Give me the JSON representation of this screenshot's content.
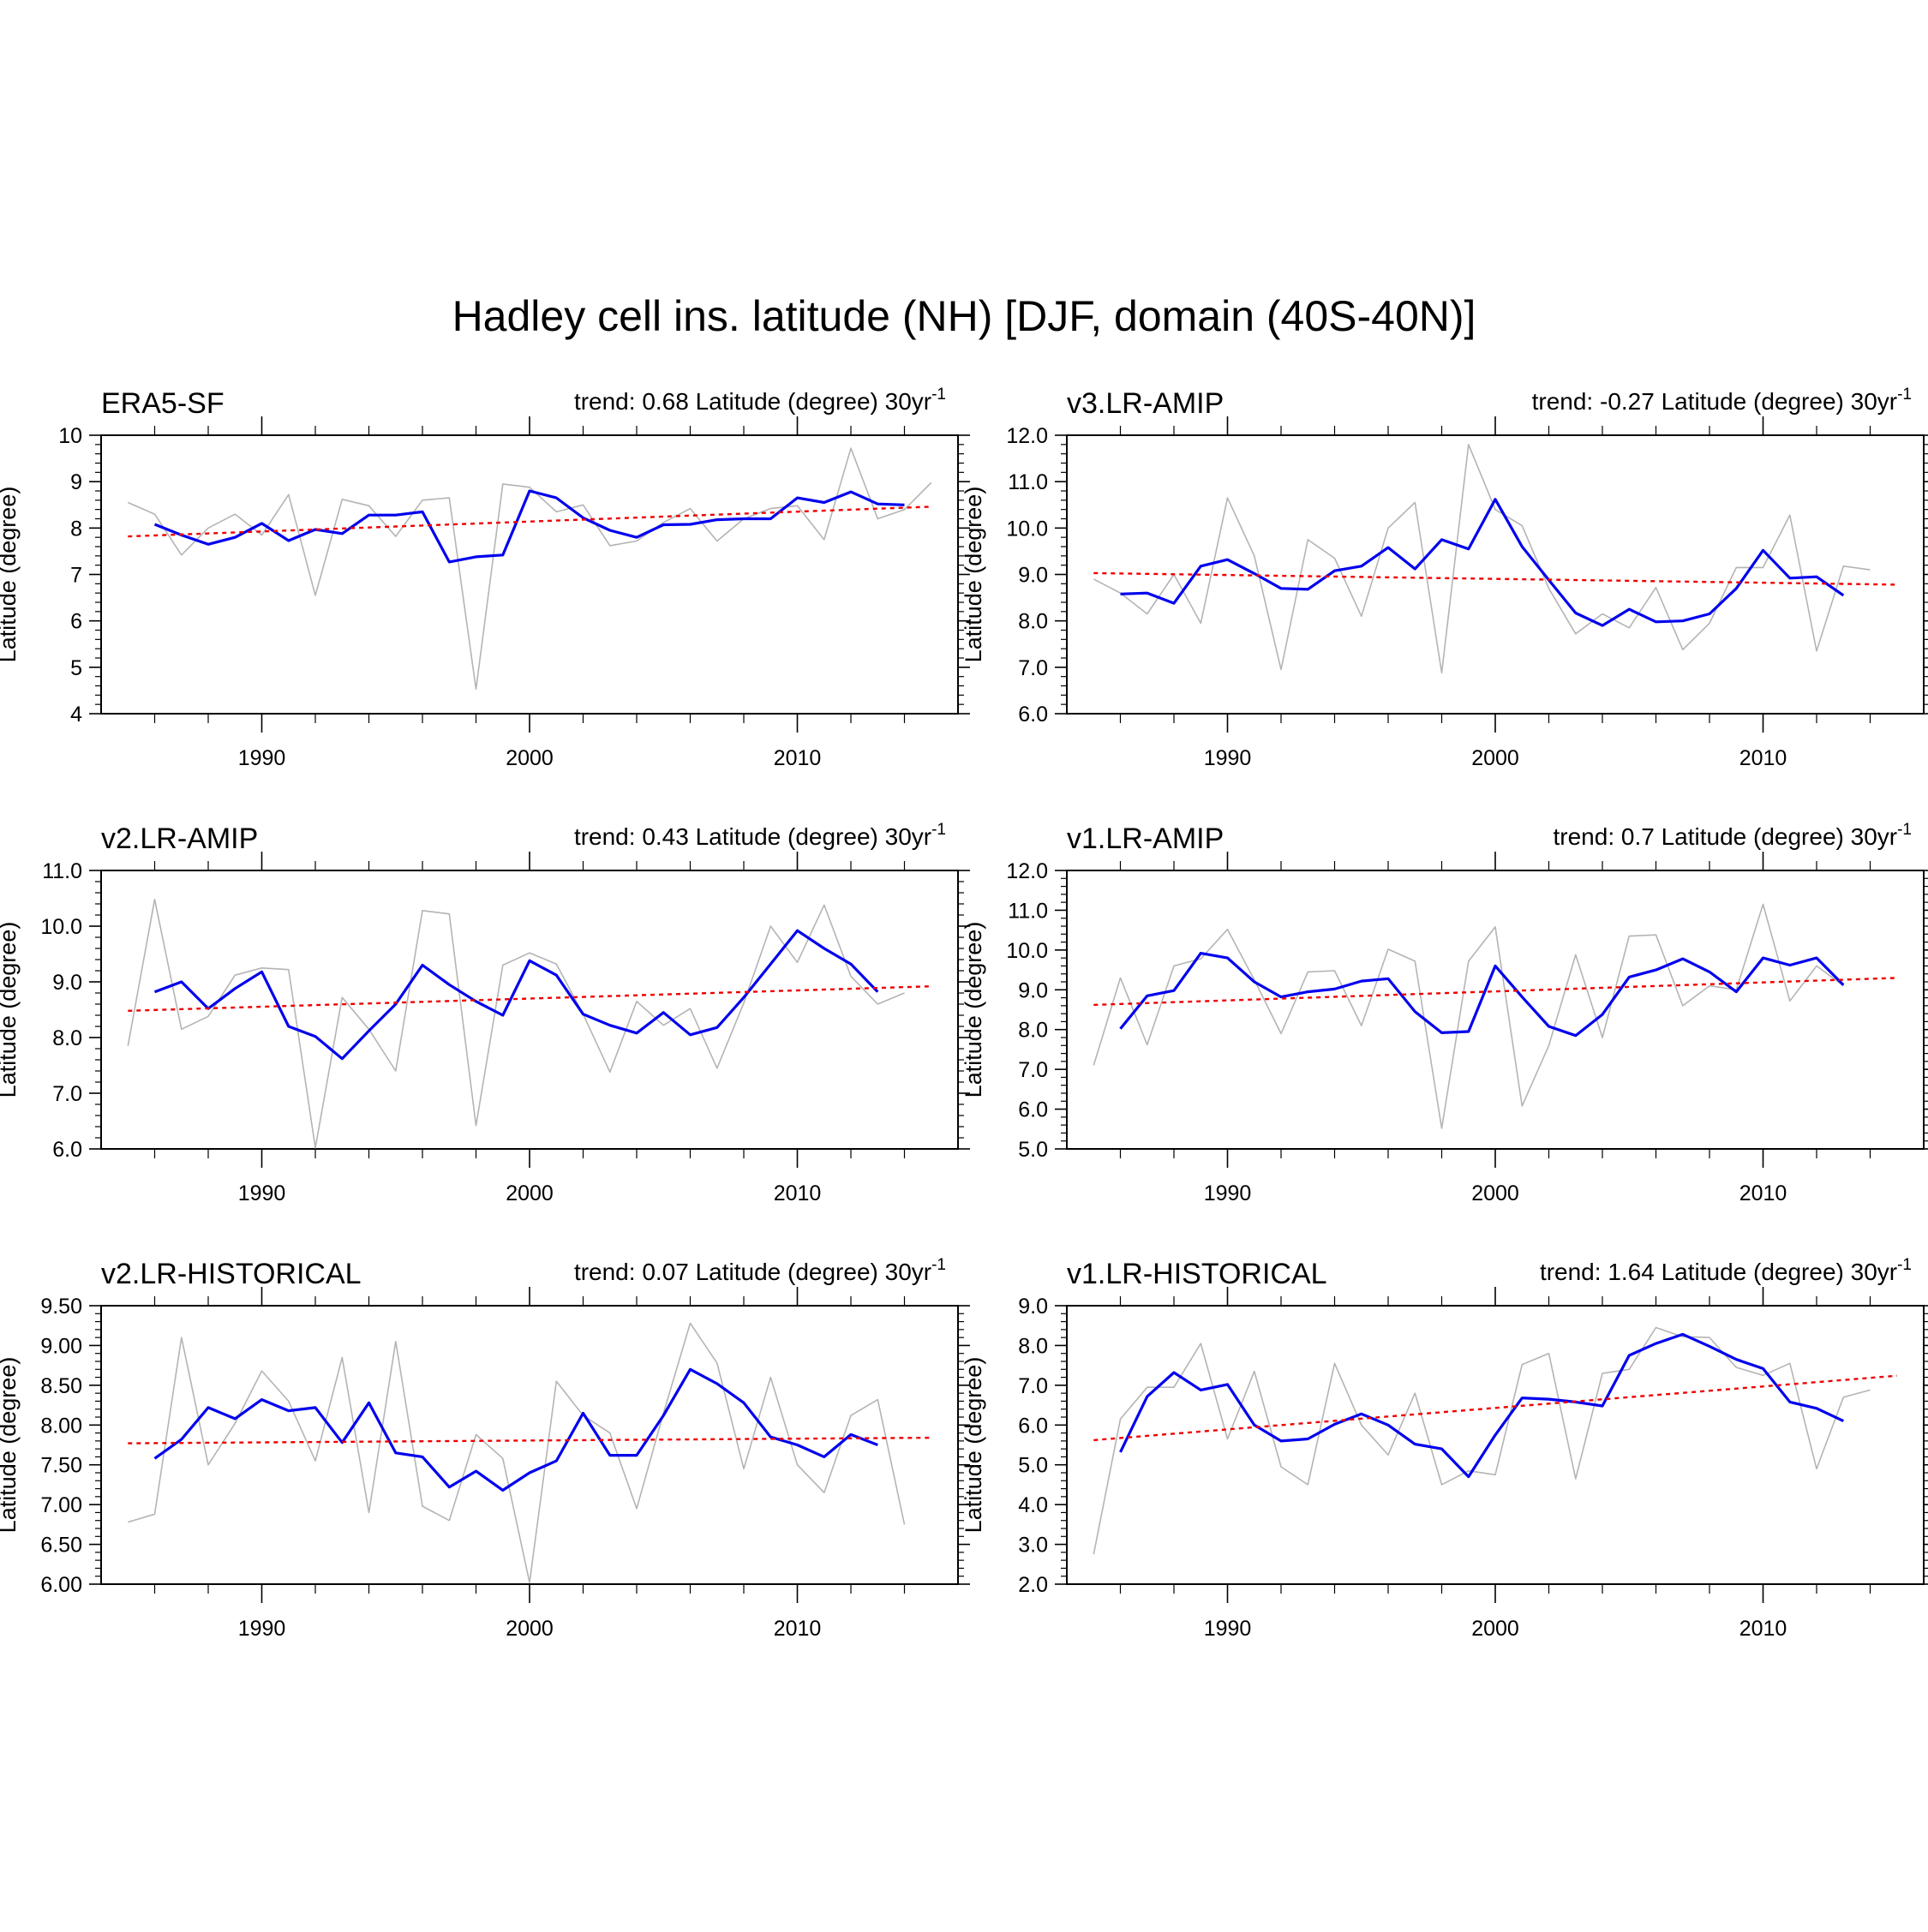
{
  "figure": {
    "title": "Hadley cell ins. latitude (NH) [DJF, domain (40S-40N)]",
    "colors": {
      "raw": "#b4b4b4",
      "smooth": "#0000ee",
      "trend": "#ee0000",
      "axis": "#000000"
    }
  },
  "chart_data": [
    {
      "type": "line",
      "title": "ERA5-SF",
      "trend_label": "trend: 0.68 Latitude (degree) 30yr",
      "trend_unit_exp": "-1",
      "xlabel": "",
      "ylabel": "Latitude (degree)",
      "xlim": [
        1984,
        2016
      ],
      "ylim": [
        4,
        10
      ],
      "xticks": [
        1990,
        2000,
        2010
      ],
      "xtick_labels": [
        "1990",
        "2000",
        "2010"
      ],
      "yticks": [
        4,
        5,
        6,
        7,
        8,
        9,
        10
      ],
      "ytick_labels": [
        "4",
        "5",
        "6",
        "7",
        "8",
        "9",
        "10"
      ],
      "series": [
        {
          "name": "raw",
          "x": [
            1985,
            1986,
            1987,
            1988,
            1989,
            1990,
            1991,
            1992,
            1993,
            1994,
            1995,
            1996,
            1997,
            1998,
            1999,
            2000,
            2001,
            2002,
            2003,
            2004,
            2005,
            2006,
            2007,
            2008,
            2009,
            2010,
            2011,
            2012,
            2013,
            2014,
            2015
          ],
          "values": [
            8.55,
            8.3,
            7.42,
            8.0,
            8.3,
            7.85,
            8.72,
            6.55,
            8.62,
            8.48,
            7.82,
            8.6,
            8.65,
            4.53,
            8.95,
            8.88,
            8.35,
            8.5,
            7.62,
            7.72,
            8.12,
            8.42,
            7.72,
            8.2,
            8.42,
            8.48,
            7.75,
            9.72,
            8.2,
            8.4,
            8.98
          ]
        },
        {
          "name": "smoothed",
          "x": [
            1986,
            1987,
            1988,
            1989,
            1990,
            1991,
            1992,
            1993,
            1994,
            1995,
            1996,
            1997,
            1998,
            1999,
            2000,
            2001,
            2002,
            2003,
            2004,
            2005,
            2006,
            2007,
            2008,
            2009,
            2010,
            2011,
            2012,
            2013,
            2014
          ],
          "values": [
            8.08,
            7.85,
            7.65,
            7.8,
            8.1,
            7.73,
            7.97,
            7.88,
            8.28,
            8.28,
            8.35,
            7.27,
            7.38,
            7.42,
            8.8,
            8.65,
            8.22,
            7.95,
            7.8,
            8.07,
            8.08,
            8.18,
            8.2,
            8.2,
            8.65,
            8.55,
            8.78,
            8.52,
            8.5
          ]
        },
        {
          "name": "trend",
          "x": [
            1985,
            2015
          ],
          "values": [
            7.82,
            8.46
          ]
        }
      ]
    },
    {
      "type": "line",
      "title": "v3.LR-AMIP",
      "trend_label": "trend: -0.27 Latitude (degree) 30yr",
      "trend_unit_exp": "-1",
      "xlabel": "",
      "ylabel": "Latitude (degree)",
      "xlim": [
        1984,
        2016
      ],
      "ylim": [
        6,
        12
      ],
      "xticks": [
        1990,
        2000,
        2010
      ],
      "xtick_labels": [
        "1990",
        "2000",
        "2010"
      ],
      "yticks": [
        6,
        7,
        8,
        9,
        10,
        11,
        12
      ],
      "ytick_labels": [
        "6.0",
        "7.0",
        "8.0",
        "9.0",
        "10.0",
        "11.0",
        "12.0"
      ],
      "series": [
        {
          "name": "raw",
          "x": [
            1985,
            1986,
            1987,
            1988,
            1989,
            1990,
            1991,
            1992,
            1993,
            1994,
            1995,
            1996,
            1997,
            1998,
            1999,
            2000,
            2001,
            2002,
            2003,
            2004,
            2005,
            2006,
            2007,
            2008,
            2009,
            2010,
            2011,
            2012,
            2013,
            2014,
            2015
          ],
          "values": [
            8.9,
            8.6,
            8.15,
            9.0,
            7.95,
            10.65,
            9.4,
            6.95,
            9.75,
            9.35,
            8.1,
            10.0,
            10.55,
            6.88,
            11.8,
            10.4,
            10.05,
            8.7,
            7.72,
            8.15,
            7.85,
            8.72,
            7.38,
            7.95,
            9.15,
            9.15,
            10.28,
            7.35,
            9.18,
            9.1,
            null
          ]
        },
        {
          "name": "smoothed",
          "x": [
            1986,
            1987,
            1988,
            1989,
            1990,
            1991,
            1992,
            1993,
            1994,
            1995,
            1996,
            1997,
            1998,
            1999,
            2000,
            2001,
            2002,
            2003,
            2004,
            2005,
            2006,
            2007,
            2008,
            2009,
            2010,
            2011,
            2012,
            2013,
            2014
          ],
          "values": [
            8.58,
            8.6,
            8.38,
            9.18,
            9.32,
            9.02,
            8.7,
            8.68,
            9.08,
            9.18,
            9.58,
            9.12,
            9.75,
            9.55,
            10.62,
            9.6,
            8.88,
            8.17,
            7.9,
            8.25,
            7.98,
            8.0,
            8.15,
            8.7,
            9.52,
            8.92,
            8.95,
            8.55,
            null
          ]
        },
        {
          "name": "trend",
          "x": [
            1985,
            2015
          ],
          "values": [
            9.03,
            8.78
          ]
        }
      ]
    },
    {
      "type": "line",
      "title": "v2.LR-AMIP",
      "trend_label": "trend: 0.43 Latitude (degree) 30yr",
      "trend_unit_exp": "-1",
      "xlabel": "",
      "ylabel": "Latitude (degree)",
      "xlim": [
        1984,
        2016
      ],
      "ylim": [
        6,
        11
      ],
      "xticks": [
        1990,
        2000,
        2010
      ],
      "xtick_labels": [
        "1990",
        "2000",
        "2010"
      ],
      "yticks": [
        6,
        7,
        8,
        9,
        10,
        11
      ],
      "ytick_labels": [
        "6.0",
        "7.0",
        "8.0",
        "9.0",
        "10.0",
        "11.0"
      ],
      "series": [
        {
          "name": "raw",
          "x": [
            1985,
            1986,
            1987,
            1988,
            1989,
            1990,
            1991,
            1992,
            1993,
            1994,
            1995,
            1996,
            1997,
            1998,
            1999,
            2000,
            2001,
            2002,
            2003,
            2004,
            2005,
            2006,
            2007,
            2008,
            2009,
            2010,
            2011,
            2012,
            2013,
            2014,
            2015
          ],
          "values": [
            7.85,
            10.48,
            8.15,
            8.38,
            9.12,
            9.25,
            9.22,
            6.02,
            8.72,
            8.15,
            7.4,
            10.28,
            10.22,
            6.42,
            9.3,
            9.52,
            9.32,
            8.42,
            7.38,
            8.65,
            8.22,
            8.52,
            7.45,
            8.62,
            10.0,
            9.35,
            10.38,
            9.1,
            8.6,
            8.8,
            null
          ]
        },
        {
          "name": "smoothed",
          "x": [
            1986,
            1987,
            1988,
            1989,
            1990,
            1991,
            1992,
            1993,
            1994,
            1995,
            1996,
            1997,
            1998,
            1999,
            2000,
            2001,
            2002,
            2003,
            2004,
            2005,
            2006,
            2007,
            2008,
            2009,
            2010,
            2011,
            2012,
            2013,
            2014
          ],
          "values": [
            8.82,
            9.0,
            8.52,
            8.88,
            9.18,
            8.2,
            8.02,
            7.62,
            8.12,
            8.6,
            9.3,
            8.95,
            8.65,
            8.4,
            9.38,
            9.12,
            8.42,
            8.22,
            8.08,
            8.45,
            8.05,
            8.18,
            8.72,
            9.32,
            9.92,
            9.6,
            9.32,
            8.82,
            null
          ]
        },
        {
          "name": "trend",
          "x": [
            1985,
            2015
          ],
          "values": [
            8.48,
            8.92
          ]
        }
      ]
    },
    {
      "type": "line",
      "title": "v1.LR-AMIP",
      "trend_label": "trend: 0.7 Latitude (degree) 30yr",
      "trend_unit_exp": "-1",
      "xlabel": "",
      "ylabel": "Latitude (degree)",
      "xlim": [
        1984,
        2016
      ],
      "ylim": [
        5,
        12
      ],
      "xticks": [
        1990,
        2000,
        2010
      ],
      "xtick_labels": [
        "1990",
        "2000",
        "2010"
      ],
      "yticks": [
        5,
        6,
        7,
        8,
        9,
        10,
        11,
        12
      ],
      "ytick_labels": [
        "5.0",
        "6.0",
        "7.0",
        "8.0",
        "9.0",
        "10.0",
        "11.0",
        "12.0"
      ],
      "series": [
        {
          "name": "raw",
          "x": [
            1985,
            1986,
            1987,
            1988,
            1989,
            1990,
            1991,
            1992,
            1993,
            1994,
            1995,
            1996,
            1997,
            1998,
            1999,
            2000,
            2001,
            2002,
            2003,
            2004,
            2005,
            2006,
            2007,
            2008,
            2009,
            2010,
            2011,
            2012,
            2013,
            2014,
            2015
          ],
          "values": [
            7.1,
            9.3,
            7.62,
            9.6,
            9.78,
            10.52,
            9.25,
            7.9,
            9.45,
            9.48,
            8.1,
            10.02,
            9.72,
            5.52,
            9.72,
            10.58,
            6.08,
            7.6,
            9.88,
            7.8,
            10.35,
            10.38,
            8.6,
            9.1,
            9.0,
            11.15,
            8.72,
            9.6,
            9.1,
            null,
            null
          ]
        },
        {
          "name": "smoothed",
          "x": [
            1986,
            1987,
            1988,
            1989,
            1990,
            1991,
            1992,
            1993,
            1994,
            1995,
            1996,
            1997,
            1998,
            1999,
            2000,
            2001,
            2002,
            2003,
            2004,
            2005,
            2006,
            2007,
            2008,
            2009,
            2010,
            2011,
            2012,
            2013,
            2014
          ],
          "values": [
            8.02,
            8.85,
            8.98,
            9.92,
            9.8,
            9.2,
            8.82,
            8.95,
            9.02,
            9.22,
            9.28,
            8.45,
            7.92,
            7.95,
            9.6,
            8.82,
            8.08,
            7.85,
            8.38,
            9.32,
            9.5,
            9.78,
            9.45,
            8.95,
            9.8,
            9.62,
            9.8,
            9.12,
            null
          ]
        },
        {
          "name": "trend",
          "x": [
            1985,
            2015
          ],
          "values": [
            8.62,
            9.3
          ]
        }
      ]
    },
    {
      "type": "line",
      "title": "v2.LR-HISTORICAL",
      "trend_label": "trend: 0.07 Latitude (degree) 30yr",
      "trend_unit_exp": "-1",
      "xlabel": "",
      "ylabel": "Latitude (degree)",
      "xlim": [
        1984,
        2016
      ],
      "ylim": [
        6,
        9.5
      ],
      "xticks": [
        1990,
        2000,
        2010
      ],
      "xtick_labels": [
        "1990",
        "2000",
        "2010"
      ],
      "yticks": [
        6,
        6.5,
        7,
        7.5,
        8,
        8.5,
        9,
        9.5
      ],
      "ytick_labels": [
        "6.00",
        "6.50",
        "7.00",
        "7.50",
        "8.00",
        "8.50",
        "9.00",
        "9.50"
      ],
      "series": [
        {
          "name": "raw",
          "x": [
            1985,
            1986,
            1987,
            1988,
            1989,
            1990,
            1991,
            1992,
            1993,
            1994,
            1995,
            1996,
            1997,
            1998,
            1999,
            2000,
            2001,
            2002,
            2003,
            2004,
            2005,
            2006,
            2007,
            2008,
            2009,
            2010,
            2011,
            2012,
            2013,
            2014,
            2015
          ],
          "values": [
            6.78,
            6.88,
            9.1,
            7.5,
            8.02,
            8.68,
            8.3,
            7.55,
            8.85,
            6.9,
            9.05,
            6.98,
            6.8,
            7.88,
            7.58,
            6.02,
            8.55,
            8.12,
            7.9,
            6.95,
            8.15,
            9.28,
            8.78,
            7.45,
            8.6,
            7.5,
            7.15,
            8.12,
            8.32,
            6.75,
            null
          ]
        },
        {
          "name": "smoothed",
          "x": [
            1986,
            1987,
            1988,
            1989,
            1990,
            1991,
            1992,
            1993,
            1994,
            1995,
            1996,
            1997,
            1998,
            1999,
            2000,
            2001,
            2002,
            2003,
            2004,
            2005,
            2006,
            2007,
            2008,
            2009,
            2010,
            2011,
            2012,
            2013,
            2014
          ],
          "values": [
            7.58,
            7.82,
            8.22,
            8.08,
            8.32,
            8.18,
            8.22,
            7.78,
            8.28,
            7.65,
            7.6,
            7.22,
            7.42,
            7.18,
            7.4,
            7.55,
            8.15,
            7.62,
            7.62,
            8.12,
            8.7,
            8.52,
            8.28,
            7.85,
            7.75,
            7.6,
            7.88,
            7.75,
            null
          ]
        },
        {
          "name": "trend",
          "x": [
            1985,
            2015
          ],
          "values": [
            7.77,
            7.84
          ]
        }
      ]
    },
    {
      "type": "line",
      "title": "v1.LR-HISTORICAL",
      "trend_label": "trend: 1.64 Latitude (degree) 30yr",
      "trend_unit_exp": "-1",
      "xlabel": "",
      "ylabel": "Latitude (degree)",
      "xlim": [
        1984,
        2016
      ],
      "ylim": [
        2,
        9
      ],
      "xticks": [
        1990,
        2000,
        2010
      ],
      "xtick_labels": [
        "1990",
        "2000",
        "2010"
      ],
      "yticks": [
        2,
        3,
        4,
        5,
        6,
        7,
        8,
        9
      ],
      "ytick_labels": [
        "2.0",
        "3.0",
        "4.0",
        "5.0",
        "6.0",
        "7.0",
        "8.0",
        "9.0"
      ],
      "series": [
        {
          "name": "raw",
          "x": [
            1985,
            1986,
            1987,
            1988,
            1989,
            1990,
            1991,
            1992,
            1993,
            1994,
            1995,
            1996,
            1997,
            1998,
            1999,
            2000,
            2001,
            2002,
            2003,
            2004,
            2005,
            2006,
            2007,
            2008,
            2009,
            2010,
            2011,
            2012,
            2013,
            2014,
            2015
          ],
          "values": [
            2.75,
            6.15,
            6.95,
            6.95,
            8.05,
            5.65,
            7.35,
            4.95,
            4.5,
            7.55,
            6.0,
            5.25,
            6.8,
            4.5,
            4.85,
            4.75,
            7.52,
            7.8,
            4.65,
            7.3,
            7.4,
            8.45,
            8.22,
            8.2,
            7.45,
            7.25,
            7.55,
            4.9,
            6.7,
            6.88,
            null
          ]
        },
        {
          "name": "smoothed",
          "x": [
            1986,
            1987,
            1988,
            1989,
            1990,
            1991,
            1992,
            1993,
            1994,
            1995,
            1996,
            1997,
            1998,
            1999,
            2000,
            2001,
            2002,
            2003,
            2004,
            2005,
            2006,
            2007,
            2008,
            2009,
            2010,
            2011,
            2012,
            2013,
            2014
          ],
          "values": [
            5.32,
            6.72,
            7.32,
            6.88,
            7.02,
            6.0,
            5.6,
            5.65,
            6.02,
            6.28,
            6.0,
            5.52,
            5.4,
            4.7,
            5.75,
            6.68,
            6.65,
            6.58,
            6.48,
            7.75,
            8.05,
            8.28,
            7.98,
            7.65,
            7.42,
            6.58,
            6.42,
            6.1,
            null
          ]
        },
        {
          "name": "trend",
          "x": [
            1985,
            2015
          ],
          "values": [
            5.62,
            7.24
          ]
        }
      ]
    }
  ]
}
